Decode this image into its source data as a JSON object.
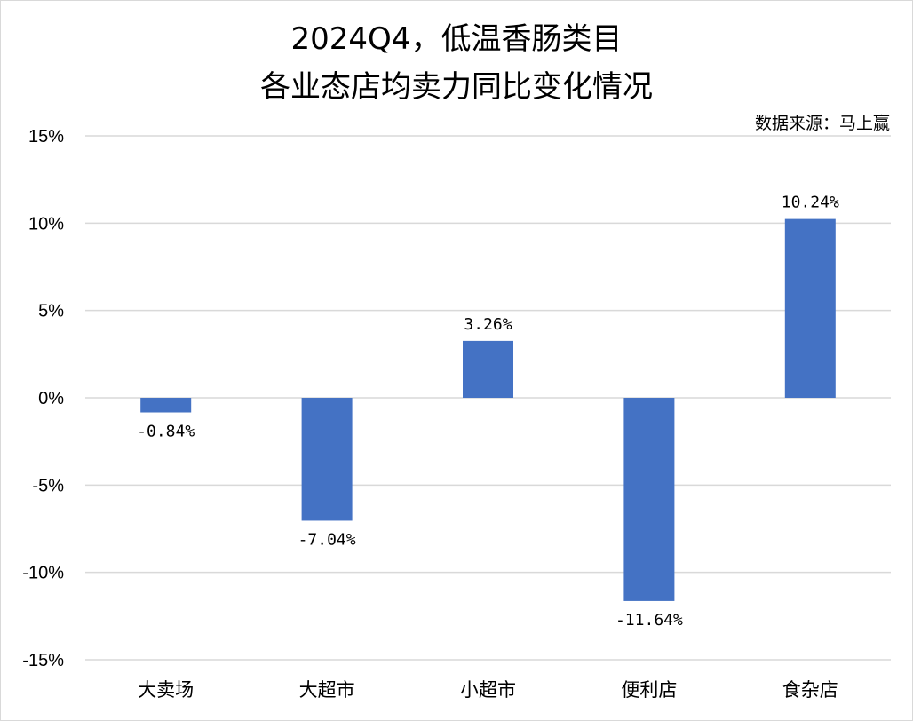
{
  "title_line1": "2024Q4，低温香肠类目",
  "title_line2": "各业态店均卖力同比变化情况",
  "source": "数据来源：马上赢",
  "chart_data": {
    "type": "bar",
    "title": "2024Q4，低温香肠类目 各业态店均卖力同比变化情况",
    "categories": [
      "大卖场",
      "大超市",
      "小超市",
      "便利店",
      "食杂店"
    ],
    "values": [
      -0.84,
      -7.04,
      3.26,
      -11.64,
      10.24
    ],
    "data_labels": [
      "-0.84%",
      "-7.04%",
      "3.26%",
      "-11.64%",
      "10.24%"
    ],
    "y_ticks": [
      15,
      10,
      5,
      0,
      -5,
      -10,
      -15
    ],
    "y_tick_labels": [
      "15%",
      "10%",
      "5%",
      "0%",
      "-5%",
      "-10%",
      "-15%"
    ],
    "ylim": [
      -15,
      15
    ],
    "xlabel": "",
    "ylabel": "",
    "grid": true,
    "legend": "none",
    "bar_color": "#4472C4",
    "grid_color": "#d9d9d9"
  }
}
